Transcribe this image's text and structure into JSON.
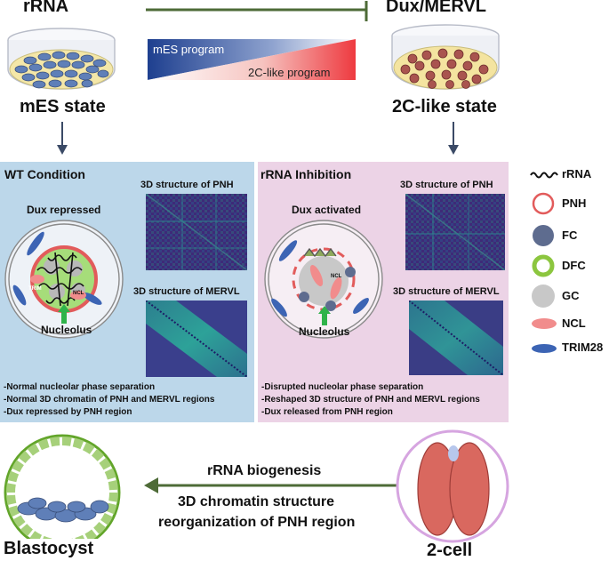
{
  "top": {
    "left_label": "rRNA",
    "right_label": "Dux/MERVL",
    "gradient_top": "mES program",
    "gradient_bottom": "2C-like program",
    "left_state": "mES state",
    "right_state": "2C-like state"
  },
  "wt": {
    "title": "WT Condition",
    "dux_status": "Dux repressed",
    "nucleolus": "Nucleolus",
    "pnh_title": "3D structure of PNH",
    "mervl_title": "3D structure of MERVL",
    "ncl": "NCL",
    "trim": "TRIM",
    "notes": [
      "-Normal nucleolar phase separation",
      "-Normal 3D chromatin of PNH and MERVL regions",
      "-Dux repressed by PNH region"
    ]
  },
  "inh": {
    "title": "rRNA Inhibition",
    "dux_status": "Dux activated",
    "nucleolus": "Nucleolus",
    "pnh_title": "3D structure of PNH",
    "mervl_title": "3D structure of MERVL",
    "ncl": "NCL",
    "notes": [
      "-Disrupted nucleolar phase separation",
      "-Reshaped 3D structure of PNH and MERVL regions",
      "-Dux released from PNH region"
    ]
  },
  "legend": [
    {
      "label": "rRNA",
      "icon": "wavy-line-icon"
    },
    {
      "label": "PNH",
      "icon": "ring-icon"
    },
    {
      "label": "FC",
      "icon": "dark-circle-icon"
    },
    {
      "label": "DFC",
      "icon": "green-ring-icon"
    },
    {
      "label": "GC",
      "icon": "grey-circle-icon"
    },
    {
      "label": "NCL",
      "icon": "pink-ellipse-icon"
    },
    {
      "label": "TRIM28",
      "icon": "blue-ellipse-icon"
    }
  ],
  "bottom": {
    "line1": "rRNA biogenesis",
    "line2": "3D chromatin structure",
    "line3": "reorganization of PNH region",
    "left_label": "Blastocyst",
    "right_label": "2-cell"
  },
  "colors": {
    "wt_panel": "#bcd7ea",
    "inh_panel": "#ecd3e6",
    "arrow_green": "#4e6b37",
    "navy": "#3b4a66"
  }
}
